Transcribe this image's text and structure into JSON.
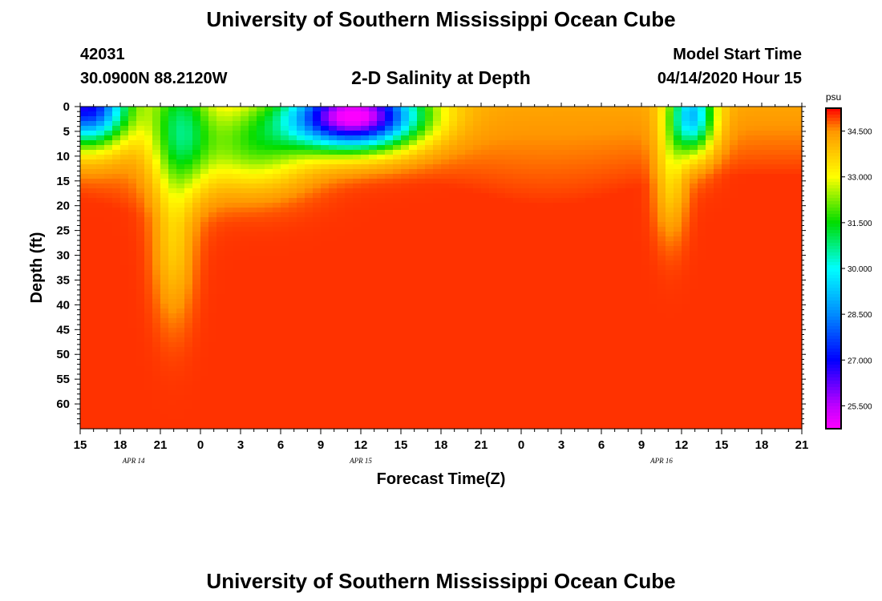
{
  "header": {
    "title": "University of Southern Mississippi Ocean Cube",
    "station_id": "42031",
    "coordinates": "30.0900N 88.2120W",
    "plot_title": "2-D Salinity at Depth",
    "start_label": "Model Start Time",
    "start_value": "04/14/2020 Hour 15"
  },
  "footer": {
    "title": "University of Southern Mississippi Ocean Cube"
  },
  "chart_data": {
    "type": "heatmap",
    "title": "2-D Salinity at Depth",
    "xlabel": "Forecast Time(Z)",
    "ylabel": "Depth (ft)",
    "x_tick_labels": [
      "15",
      "18",
      "21",
      "0",
      "3",
      "6",
      "9",
      "12",
      "15",
      "18",
      "21",
      "0",
      "3",
      "6",
      "9",
      "12",
      "15",
      "18",
      "21"
    ],
    "x_range_hours": [
      0,
      54
    ],
    "date_labels": [
      {
        "text": "APR 14",
        "hour": 4
      },
      {
        "text": "APR 15",
        "hour": 21
      },
      {
        "text": "APR 16",
        "hour": 43.5
      }
    ],
    "y_tick_labels": [
      "0",
      "5",
      "10",
      "15",
      "20",
      "25",
      "30",
      "35",
      "40",
      "45",
      "50",
      "55",
      "60"
    ],
    "y_range_ft": [
      0,
      65
    ],
    "colorbar": {
      "unit": "psu",
      "tick_labels": [
        "34.500",
        "33.000",
        "31.500",
        "30.000",
        "28.500",
        "27.000",
        "25.500"
      ],
      "tick_values": [
        34.5,
        33.0,
        31.5,
        30.0,
        28.5,
        27.0,
        25.5
      ],
      "range": [
        24.75,
        35.25
      ]
    },
    "field_features": [
      {
        "note": "background",
        "salinity": 35.0
      },
      {
        "note": "fresh lens near surface, APR 14 15Z-18Z",
        "hour_range": [
          0,
          4
        ],
        "depth_ft_range": [
          0,
          11
        ],
        "min_salinity": 27.2
      },
      {
        "note": "fresh lens APR 15 ~12Z",
        "hour_range": [
          15,
          27
        ],
        "depth_ft_range": [
          0,
          17
        ],
        "min_salinity": 25.2
      },
      {
        "note": "fresh intrusion APR 16 ~12Z",
        "hour_range": [
          43.5,
          48.5
        ],
        "depth_ft_range": [
          0,
          15
        ],
        "min_salinity": 29.0
      }
    ]
  }
}
